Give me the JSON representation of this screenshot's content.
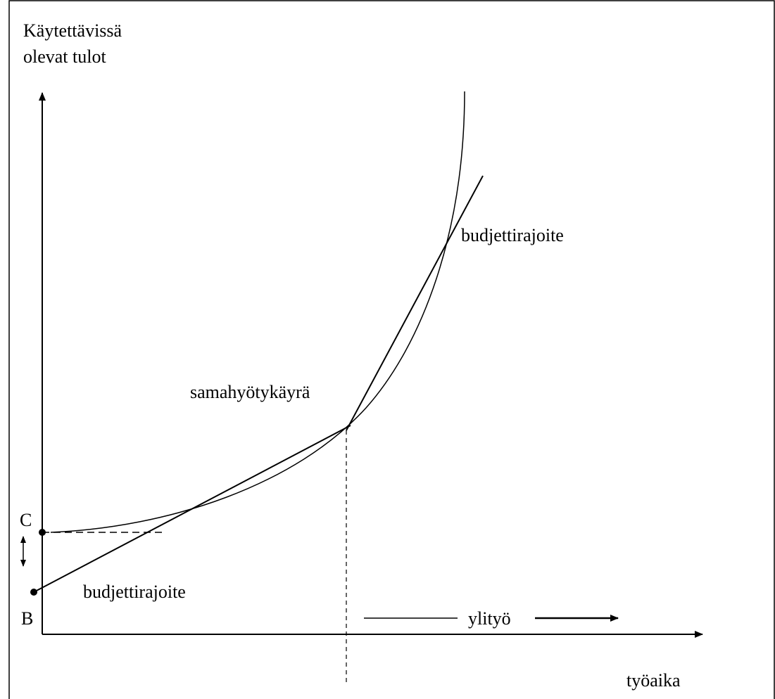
{
  "y_axis_label": [
    "Käytettävissä",
    "olevat tulot"
  ],
  "x_axis_label": "työaika",
  "curve_label": "samahyötykäyrä",
  "budget_upper_label": "budjettirajoite",
  "budget_lower_label": "budjettirajoite",
  "point_c": "C",
  "point_b": "B",
  "overtime_label": "ylityö"
}
